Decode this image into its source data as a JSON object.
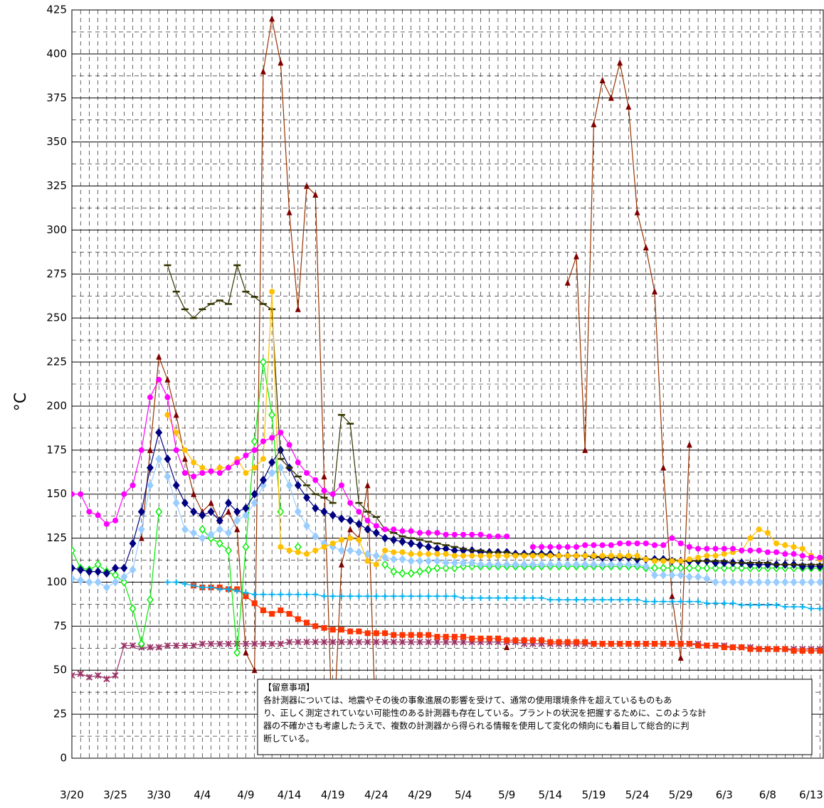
{
  "chart_data": {
    "type": "line",
    "ylabel": "°C",
    "ylim": [
      0,
      425
    ],
    "yticks": [
      0,
      25,
      50,
      75,
      100,
      125,
      150,
      175,
      200,
      225,
      250,
      275,
      300,
      325,
      350,
      375,
      400,
      425
    ],
    "grid": true,
    "categories": [
      "3/20",
      null,
      null,
      null,
      null,
      "3/25",
      null,
      null,
      null,
      null,
      "3/30",
      null,
      null,
      null,
      null,
      "4/4",
      null,
      null,
      null,
      null,
      "4/9",
      null,
      null,
      null,
      null,
      "4/14",
      null,
      null,
      null,
      null,
      "4/19",
      null,
      null,
      null,
      null,
      "4/24",
      null,
      null,
      null,
      null,
      "4/29",
      null,
      null,
      null,
      null,
      "5/4",
      null,
      null,
      null,
      null,
      "5/9",
      null,
      null,
      null,
      null,
      "5/14",
      null,
      null,
      null,
      null,
      "5/19",
      null,
      null,
      null,
      null,
      "5/24",
      null,
      null,
      null,
      null,
      "5/29",
      null,
      null,
      null,
      null,
      "6/3",
      null,
      null,
      null,
      null,
      "6/8",
      null,
      null,
      null,
      null,
      "6/13",
      null
    ],
    "annotations": [
      "【留意事項】",
      "各計測器については、地震やその後の事象進展の影響を受けて、通常の使用環境条件を超えているものもあ",
      "り、正しく測定されていない可能性のある計測器も存在している。プラントの状況を把握するために、このような計",
      "器の不確かさも考慮したうえで、複数の計測器から得られる情報を使用して変化の傾向にも着目して総合的に判",
      "断している。"
    ],
    "series": [
      {
        "color": "#993300",
        "marker": "triangle",
        "values": [
          null,
          null,
          null,
          null,
          null,
          null,
          null,
          null,
          125,
          175,
          228,
          215,
          195,
          170,
          150,
          140,
          145,
          135,
          140,
          130,
          60,
          50,
          390,
          420,
          395,
          310,
          255,
          325,
          320,
          160,
          5,
          110,
          130,
          125,
          155,
          7,
          null,
          null,
          null,
          null,
          null,
          null,
          null,
          null,
          null,
          null,
          null,
          null,
          null,
          null,
          63,
          null,
          null,
          null,
          null,
          null,
          null,
          270,
          285,
          175,
          360,
          385,
          375,
          395,
          370,
          310,
          290,
          265,
          165,
          92,
          57,
          178,
          null,
          null,
          null,
          null,
          null,
          null,
          null,
          null,
          null,
          null,
          null,
          null,
          null,
          null,
          null
        ]
      },
      {
        "color": "#993366",
        "marker": "star",
        "values": [
          47,
          48,
          46,
          47,
          45,
          47,
          64,
          64,
          63,
          63,
          63,
          64,
          64,
          64,
          64,
          65,
          65,
          65,
          65,
          65,
          65,
          65,
          65,
          65,
          65,
          66,
          66,
          66,
          66,
          66,
          66,
          66,
          66,
          66,
          66,
          66,
          66,
          66,
          66,
          66,
          66,
          66,
          66,
          66,
          66,
          66,
          66,
          66,
          66,
          66,
          66,
          66,
          65,
          65,
          65,
          65,
          65,
          65,
          65,
          65,
          65,
          65,
          65,
          65,
          65,
          65,
          65,
          65,
          65,
          65,
          65,
          65,
          65,
          64,
          64,
          64,
          63,
          63,
          63,
          62,
          62,
          62,
          62,
          62,
          62,
          62,
          62
        ]
      },
      {
        "color": "#ff3300",
        "marker": "square",
        "values": [
          null,
          null,
          null,
          null,
          null,
          null,
          null,
          null,
          null,
          null,
          null,
          null,
          null,
          null,
          98,
          97,
          97,
          97,
          96,
          96,
          92,
          88,
          84,
          82,
          84,
          82,
          79,
          77,
          75,
          74,
          73,
          73,
          72,
          72,
          71,
          71,
          71,
          70,
          70,
          70,
          70,
          70,
          69,
          69,
          69,
          69,
          68,
          68,
          68,
          68,
          67,
          67,
          67,
          67,
          67,
          66,
          66,
          66,
          66,
          66,
          65,
          65,
          65,
          65,
          65,
          65,
          65,
          65,
          65,
          65,
          65,
          65,
          64,
          64,
          64,
          63,
          63,
          63,
          62,
          62,
          62,
          62,
          62,
          61,
          61,
          61,
          61
        ]
      },
      {
        "color": "#00b0f0",
        "marker": "cross",
        "values": [
          null,
          null,
          null,
          null,
          null,
          null,
          null,
          null,
          null,
          null,
          null,
          100,
          100,
          99,
          98,
          97,
          97,
          96,
          96,
          95,
          94,
          93,
          93,
          93,
          93,
          93,
          93,
          93,
          93,
          92,
          92,
          92,
          92,
          92,
          92,
          92,
          92,
          92,
          92,
          92,
          92,
          92,
          92,
          92,
          92,
          91,
          91,
          91,
          91,
          91,
          91,
          91,
          91,
          91,
          91,
          90,
          90,
          90,
          90,
          90,
          90,
          90,
          90,
          90,
          90,
          90,
          89,
          89,
          89,
          89,
          89,
          89,
          89,
          88,
          88,
          88,
          88,
          87,
          87,
          87,
          87,
          87,
          86,
          86,
          86,
          85,
          85
        ]
      },
      {
        "color": "#00ee00",
        "marker": "open-diamond",
        "values": [
          118,
          108,
          107,
          110,
          106,
          104,
          100,
          85,
          65,
          90,
          140,
          null,
          null,
          null,
          null,
          130,
          125,
          122,
          118,
          60,
          120,
          180,
          225,
          195,
          140,
          null,
          120,
          null,
          null,
          null,
          null,
          null,
          null,
          null,
          null,
          null,
          110,
          106,
          105,
          105,
          106,
          107,
          108,
          108,
          108,
          109,
          109,
          109,
          109,
          109,
          109,
          109,
          109,
          109,
          109,
          109,
          109,
          109,
          109,
          109,
          109,
          109,
          109,
          109,
          109,
          109,
          108,
          108,
          108,
          108,
          108,
          108,
          108,
          108,
          108,
          108,
          108,
          108,
          108,
          108,
          108,
          108,
          108,
          108,
          108,
          108,
          108
        ]
      },
      {
        "color": "#99ccff",
        "marker": "diamond",
        "values": [
          102,
          101,
          100,
          100,
          97,
          100,
          103,
          107,
          130,
          155,
          170,
          160,
          145,
          130,
          128,
          125,
          127,
          130,
          128,
          135,
          138,
          145,
          155,
          162,
          165,
          155,
          140,
          132,
          126,
          122,
          120,
          118,
          118,
          117,
          116,
          115,
          114,
          113,
          113,
          112,
          112,
          112,
          112,
          111,
          111,
          111,
          111,
          110,
          110,
          110,
          110,
          110,
          110,
          110,
          110,
          110,
          110,
          110,
          110,
          110,
          110,
          110,
          110,
          110,
          110,
          110,
          109,
          104,
          104,
          104,
          104,
          103,
          103,
          102,
          100,
          100,
          100,
          100,
          100,
          100,
          100,
          100,
          100,
          100,
          100,
          100,
          100
        ]
      },
      {
        "color": "#000080",
        "marker": "diamond",
        "values": [
          108,
          107,
          106,
          106,
          105,
          108,
          108,
          122,
          140,
          165,
          185,
          170,
          155,
          145,
          140,
          138,
          140,
          135,
          145,
          140,
          142,
          150,
          158,
          168,
          175,
          165,
          155,
          148,
          142,
          140,
          138,
          136,
          135,
          133,
          130,
          128,
          125,
          124,
          123,
          122,
          121,
          120,
          119,
          119,
          118,
          118,
          118,
          117,
          117,
          117,
          117,
          116,
          116,
          116,
          116,
          116,
          115,
          115,
          115,
          115,
          115,
          114,
          114,
          114,
          114,
          113,
          113,
          113,
          113,
          112,
          112,
          112,
          112,
          112,
          111,
          111,
          111,
          111,
          110,
          110,
          110,
          110,
          110,
          110,
          109,
          109,
          109
        ]
      },
      {
        "color": "#333300",
        "marker": "dash",
        "values": [
          null,
          null,
          null,
          null,
          null,
          null,
          null,
          null,
          null,
          null,
          null,
          280,
          265,
          255,
          250,
          255,
          258,
          260,
          258,
          280,
          265,
          262,
          258,
          255,
          170,
          165,
          160,
          155,
          150,
          148,
          145,
          195,
          190,
          145,
          140,
          137,
          130,
          128,
          126,
          125,
          124,
          123,
          122,
          121,
          120,
          119,
          118,
          118,
          117,
          117,
          117,
          116,
          116,
          116,
          116,
          115,
          115,
          115,
          115,
          115,
          114,
          114,
          114,
          114,
          114,
          113,
          113,
          113,
          113,
          113,
          112,
          112,
          112,
          112,
          112,
          112,
          111,
          111,
          111,
          111,
          111,
          110,
          110,
          110,
          110,
          110,
          110
        ]
      },
      {
        "color": "#ffc000",
        "marker": "circle",
        "values": [
          null,
          null,
          null,
          null,
          null,
          null,
          null,
          null,
          null,
          null,
          null,
          195,
          185,
          175,
          168,
          165,
          163,
          165,
          165,
          170,
          162,
          165,
          170,
          265,
          120,
          118,
          117,
          116,
          118,
          120,
          122,
          124,
          125,
          124,
          112,
          110,
          118,
          117,
          117,
          116,
          116,
          116,
          116,
          116,
          115,
          115,
          115,
          115,
          115,
          115,
          115,
          115,
          115,
          115,
          115,
          115,
          115,
          115,
          115,
          115,
          115,
          115,
          115,
          115,
          115,
          115,
          113,
          112,
          112,
          112,
          112,
          113,
          114,
          115,
          115,
          116,
          117,
          118,
          125,
          130,
          128,
          122,
          121,
          120,
          119,
          115,
          113
        ]
      },
      {
        "color": "#ff00ff",
        "marker": "circle",
        "values": [
          150,
          150,
          140,
          138,
          133,
          135,
          150,
          155,
          175,
          205,
          215,
          205,
          175,
          162,
          160,
          162,
          163,
          162,
          165,
          168,
          172,
          175,
          180,
          182,
          185,
          178,
          168,
          162,
          158,
          152,
          150,
          155,
          145,
          140,
          135,
          132,
          130,
          130,
          129,
          129,
          128,
          128,
          128,
          127,
          127,
          127,
          127,
          127,
          126,
          126,
          126,
          null,
          null,
          120,
          120,
          120,
          120,
          120,
          120,
          121,
          121,
          121,
          121,
          122,
          122,
          122,
          122,
          121,
          121,
          125,
          122,
          120,
          119,
          119,
          119,
          119,
          119,
          118,
          118,
          118,
          117,
          117,
          116,
          116,
          115,
          114,
          114
        ]
      }
    ]
  }
}
